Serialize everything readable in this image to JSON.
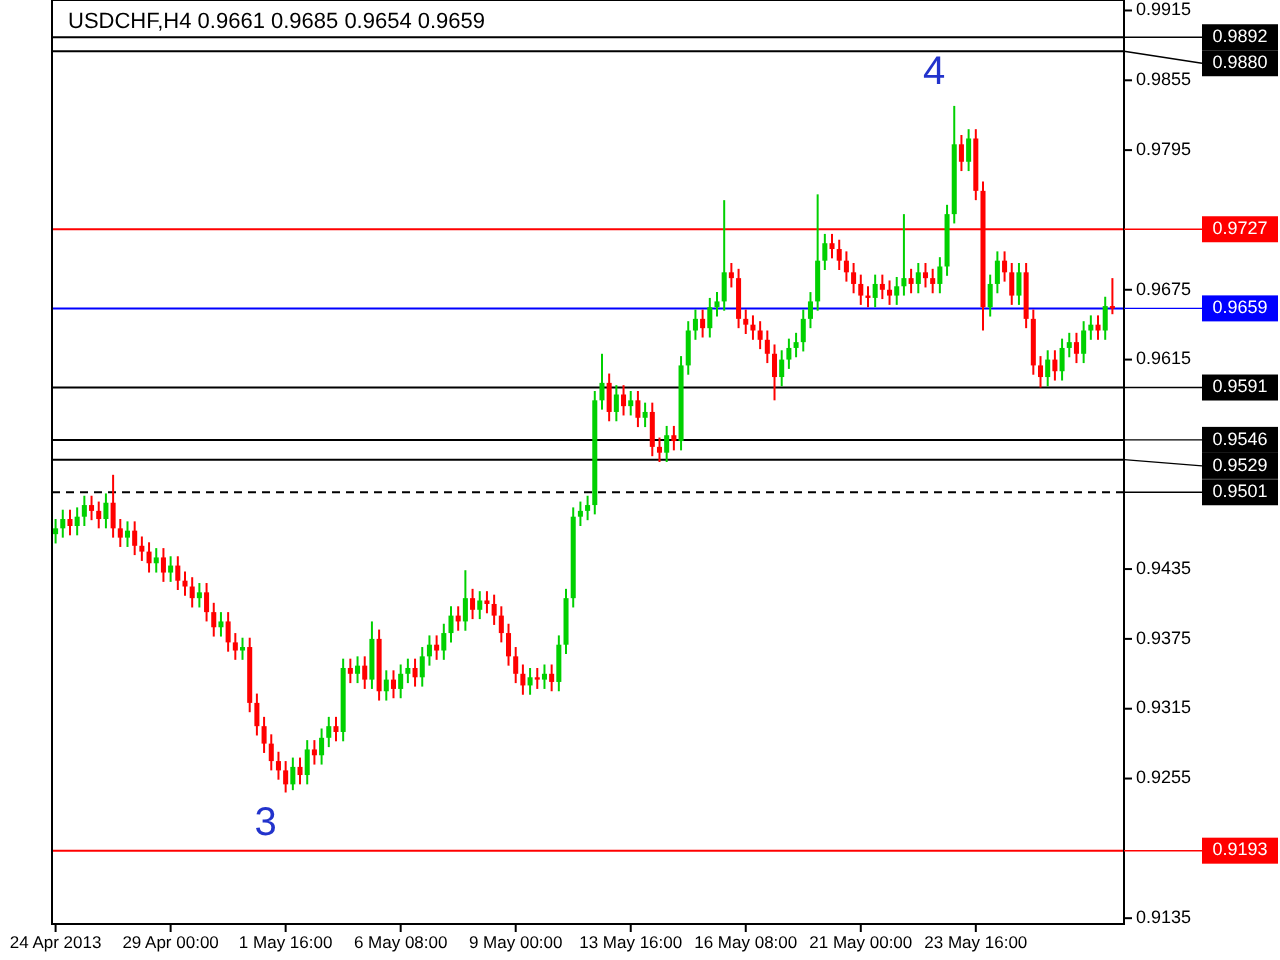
{
  "chart_data": {
    "type": "candlestick",
    "title": "USDCHF,H4  0.9661 0.9685 0.9654 0.9659",
    "categories": [
      "24 Apr 2013",
      null,
      null,
      null,
      null,
      null,
      null,
      null,
      null,
      null,
      null,
      null,
      null,
      null,
      null,
      null,
      "29 Apr 00:00",
      null,
      null,
      null,
      null,
      null,
      null,
      null,
      null,
      null,
      null,
      null,
      null,
      null,
      null,
      null,
      "1 May 16:00",
      null,
      null,
      null,
      null,
      null,
      null,
      null,
      null,
      null,
      null,
      null,
      null,
      null,
      null,
      null,
      "6 May 08:00",
      null,
      null,
      null,
      null,
      null,
      null,
      null,
      null,
      null,
      null,
      null,
      null,
      null,
      null,
      null,
      "9 May 00:00",
      null,
      null,
      null,
      null,
      null,
      null,
      null,
      null,
      null,
      null,
      null,
      null,
      null,
      null,
      null,
      "13 May 16:00",
      null,
      null,
      null,
      null,
      null,
      null,
      null,
      null,
      null,
      null,
      null,
      null,
      null,
      null,
      null,
      "16 May 08:00",
      null,
      null,
      null,
      null,
      null,
      null,
      null,
      null,
      null,
      null,
      null,
      null,
      null,
      null,
      null,
      "21 May 00:00",
      null,
      null,
      null,
      null,
      null,
      null,
      null,
      null,
      null,
      null,
      null,
      null,
      null,
      null,
      null,
      "23 May 16:00",
      null,
      null,
      null,
      null,
      null,
      null,
      null,
      null,
      null,
      null,
      null,
      null,
      null,
      null,
      null,
      null,
      null,
      null,
      null
    ],
    "ohlc": [
      [
        0.9465,
        0.9478,
        0.9457,
        0.947
      ],
      [
        0.947,
        0.9486,
        0.9462,
        0.9478
      ],
      [
        0.9478,
        0.9486,
        0.9464,
        0.9472
      ],
      [
        0.9472,
        0.9488,
        0.9464,
        0.948
      ],
      [
        0.948,
        0.9498,
        0.9472,
        0.949
      ],
      [
        0.949,
        0.9498,
        0.9477,
        0.9485
      ],
      [
        0.9485,
        0.9493,
        0.947,
        0.9478
      ],
      [
        0.9478,
        0.95,
        0.947,
        0.9492
      ],
      [
        0.9492,
        0.9516,
        0.9462,
        0.947
      ],
      [
        0.947,
        0.9478,
        0.9454,
        0.9462
      ],
      [
        0.9462,
        0.9476,
        0.9454,
        0.9468
      ],
      [
        0.9468,
        0.9476,
        0.9447,
        0.9455
      ],
      [
        0.9455,
        0.9463,
        0.9442,
        0.945
      ],
      [
        0.945,
        0.9458,
        0.9432,
        0.944
      ],
      [
        0.944,
        0.9453,
        0.9432,
        0.9445
      ],
      [
        0.9445,
        0.9453,
        0.9424,
        0.9432
      ],
      [
        0.9432,
        0.9446,
        0.9424,
        0.9438
      ],
      [
        0.9438,
        0.9446,
        0.9417,
        0.9425
      ],
      [
        0.9425,
        0.9433,
        0.9412,
        0.942
      ],
      [
        0.942,
        0.9428,
        0.9402,
        0.941
      ],
      [
        0.941,
        0.9423,
        0.9402,
        0.9415
      ],
      [
        0.9415,
        0.9423,
        0.939,
        0.9398
      ],
      [
        0.9398,
        0.9406,
        0.9377,
        0.9385
      ],
      [
        0.9385,
        0.9398,
        0.9377,
        0.939
      ],
      [
        0.939,
        0.9398,
        0.9364,
        0.9372
      ],
      [
        0.9372,
        0.938,
        0.9357,
        0.9365
      ],
      [
        0.9365,
        0.9376,
        0.9357,
        0.9368
      ],
      [
        0.9368,
        0.9376,
        0.9312,
        0.932
      ],
      [
        0.932,
        0.9328,
        0.9292,
        0.93
      ],
      [
        0.93,
        0.9308,
        0.9277,
        0.9285
      ],
      [
        0.9285,
        0.9293,
        0.9262,
        0.927
      ],
      [
        0.927,
        0.9278,
        0.9254,
        0.9262
      ],
      [
        0.9262,
        0.927,
        0.9243,
        0.925
      ],
      [
        0.925,
        0.9273,
        0.9245,
        0.9265
      ],
      [
        0.9265,
        0.9273,
        0.925,
        0.9258
      ],
      [
        0.9258,
        0.9288,
        0.925,
        0.928
      ],
      [
        0.928,
        0.9288,
        0.9267,
        0.9275
      ],
      [
        0.9275,
        0.9298,
        0.9267,
        0.929
      ],
      [
        0.929,
        0.9308,
        0.9282,
        0.93
      ],
      [
        0.93,
        0.9308,
        0.9287,
        0.9295
      ],
      [
        0.9295,
        0.9358,
        0.9287,
        0.935
      ],
      [
        0.935,
        0.9358,
        0.9337,
        0.9345
      ],
      [
        0.9345,
        0.936,
        0.9337,
        0.9352
      ],
      [
        0.9352,
        0.936,
        0.9332,
        0.934
      ],
      [
        0.934,
        0.939,
        0.9332,
        0.9375
      ],
      [
        0.9375,
        0.9383,
        0.9322,
        0.933
      ],
      [
        0.933,
        0.9348,
        0.9322,
        0.934
      ],
      [
        0.934,
        0.9348,
        0.9324,
        0.9332
      ],
      [
        0.9332,
        0.9353,
        0.9324,
        0.9345
      ],
      [
        0.9345,
        0.9358,
        0.9337,
        0.935
      ],
      [
        0.935,
        0.9358,
        0.9334,
        0.9342
      ],
      [
        0.9342,
        0.9368,
        0.9334,
        0.936
      ],
      [
        0.936,
        0.9378,
        0.9352,
        0.937
      ],
      [
        0.937,
        0.9378,
        0.9357,
        0.9365
      ],
      [
        0.9365,
        0.9388,
        0.9357,
        0.938
      ],
      [
        0.938,
        0.9403,
        0.9372,
        0.9395
      ],
      [
        0.9395,
        0.9403,
        0.9382,
        0.939
      ],
      [
        0.939,
        0.9434,
        0.9382,
        0.941
      ],
      [
        0.941,
        0.9418,
        0.9392,
        0.94
      ],
      [
        0.94,
        0.9416,
        0.9392,
        0.9408
      ],
      [
        0.9408,
        0.9416,
        0.9397,
        0.9405
      ],
      [
        0.9405,
        0.9413,
        0.9387,
        0.9395
      ],
      [
        0.9395,
        0.9403,
        0.9372,
        0.938
      ],
      [
        0.938,
        0.9388,
        0.9352,
        0.936
      ],
      [
        0.936,
        0.9368,
        0.9337,
        0.9345
      ],
      [
        0.9345,
        0.9353,
        0.9327,
        0.9335
      ],
      [
        0.9335,
        0.935,
        0.9327,
        0.9342
      ],
      [
        0.9342,
        0.935,
        0.9332,
        0.934
      ],
      [
        0.934,
        0.9353,
        0.9332,
        0.9345
      ],
      [
        0.9345,
        0.9353,
        0.933,
        0.9338
      ],
      [
        0.9338,
        0.9378,
        0.933,
        0.937
      ],
      [
        0.937,
        0.9418,
        0.9362,
        0.941
      ],
      [
        0.941,
        0.9488,
        0.9402,
        0.948
      ],
      [
        0.948,
        0.9493,
        0.9472,
        0.9485
      ],
      [
        0.9485,
        0.9498,
        0.9477,
        0.949
      ],
      [
        0.949,
        0.9588,
        0.9482,
        0.958
      ],
      [
        0.958,
        0.962,
        0.9572,
        0.9595
      ],
      [
        0.9595,
        0.9603,
        0.9562,
        0.957
      ],
      [
        0.957,
        0.9593,
        0.9562,
        0.9585
      ],
      [
        0.9585,
        0.9593,
        0.9567,
        0.9575
      ],
      [
        0.9575,
        0.9588,
        0.9567,
        0.958
      ],
      [
        0.958,
        0.9588,
        0.9557,
        0.9565
      ],
      [
        0.9565,
        0.9578,
        0.9557,
        0.957
      ],
      [
        0.957,
        0.9578,
        0.9532,
        0.954
      ],
      [
        0.954,
        0.9548,
        0.9527,
        0.9535
      ],
      [
        0.9535,
        0.9558,
        0.9527,
        0.955
      ],
      [
        0.955,
        0.9558,
        0.9537,
        0.9545
      ],
      [
        0.9545,
        0.9618,
        0.9537,
        0.961
      ],
      [
        0.961,
        0.9648,
        0.9602,
        0.964
      ],
      [
        0.964,
        0.9658,
        0.9632,
        0.965
      ],
      [
        0.965,
        0.9658,
        0.9634,
        0.9642
      ],
      [
        0.9642,
        0.9668,
        0.9634,
        0.966
      ],
      [
        0.966,
        0.9673,
        0.9652,
        0.9665
      ],
      [
        0.9665,
        0.9752,
        0.9657,
        0.969
      ],
      [
        0.969,
        0.9698,
        0.9677,
        0.9685
      ],
      [
        0.9685,
        0.9693,
        0.9642,
        0.965
      ],
      [
        0.965,
        0.9658,
        0.9637,
        0.9645
      ],
      [
        0.9645,
        0.9653,
        0.9632,
        0.964
      ],
      [
        0.964,
        0.9648,
        0.9624,
        0.9632
      ],
      [
        0.9632,
        0.964,
        0.9612,
        0.962
      ],
      [
        0.962,
        0.9628,
        0.958,
        0.96
      ],
      [
        0.96,
        0.9623,
        0.9592,
        0.9615
      ],
      [
        0.9615,
        0.9633,
        0.9607,
        0.9625
      ],
      [
        0.9625,
        0.9638,
        0.9617,
        0.963
      ],
      [
        0.963,
        0.9658,
        0.9622,
        0.965
      ],
      [
        0.965,
        0.9673,
        0.9642,
        0.9665
      ],
      [
        0.9665,
        0.9757,
        0.9657,
        0.97
      ],
      [
        0.97,
        0.9723,
        0.9692,
        0.9715
      ],
      [
        0.9715,
        0.9723,
        0.9702,
        0.971
      ],
      [
        0.971,
        0.9718,
        0.9692,
        0.97
      ],
      [
        0.97,
        0.9708,
        0.9682,
        0.969
      ],
      [
        0.969,
        0.9698,
        0.9672,
        0.968
      ],
      [
        0.968,
        0.9688,
        0.9662,
        0.967
      ],
      [
        0.967,
        0.9678,
        0.966,
        0.9668
      ],
      [
        0.9668,
        0.9688,
        0.966,
        0.968
      ],
      [
        0.968,
        0.9688,
        0.9667,
        0.9675
      ],
      [
        0.9675,
        0.9683,
        0.9662,
        0.967
      ],
      [
        0.967,
        0.9686,
        0.9662,
        0.9678
      ],
      [
        0.9678,
        0.974,
        0.967,
        0.9685
      ],
      [
        0.9685,
        0.9693,
        0.9672,
        0.968
      ],
      [
        0.968,
        0.9698,
        0.9672,
        0.969
      ],
      [
        0.969,
        0.9698,
        0.9677,
        0.9685
      ],
      [
        0.9685,
        0.9693,
        0.9672,
        0.968
      ],
      [
        0.968,
        0.9703,
        0.9672,
        0.9695
      ],
      [
        0.9695,
        0.9748,
        0.9687,
        0.974
      ],
      [
        0.974,
        0.9833,
        0.9732,
        0.98
      ],
      [
        0.98,
        0.9808,
        0.9777,
        0.9785
      ],
      [
        0.9785,
        0.9813,
        0.9777,
        0.9805
      ],
      [
        0.9805,
        0.9813,
        0.9752,
        0.976
      ],
      [
        0.976,
        0.9768,
        0.964,
        0.966
      ],
      [
        0.966,
        0.9688,
        0.9652,
        0.968
      ],
      [
        0.968,
        0.9708,
        0.9672,
        0.97
      ],
      [
        0.97,
        0.9708,
        0.9682,
        0.969
      ],
      [
        0.969,
        0.9698,
        0.9662,
        0.967
      ],
      [
        0.967,
        0.9698,
        0.9662,
        0.969
      ],
      [
        0.969,
        0.9698,
        0.9642,
        0.965
      ],
      [
        0.965,
        0.9658,
        0.9602,
        0.961
      ],
      [
        0.961,
        0.9618,
        0.9591,
        0.96
      ],
      [
        0.96,
        0.9623,
        0.9592,
        0.9615
      ],
      [
        0.9615,
        0.9623,
        0.9597,
        0.9605
      ],
      [
        0.9605,
        0.9633,
        0.9597,
        0.9625
      ],
      [
        0.9625,
        0.9638,
        0.9617,
        0.963
      ],
      [
        0.963,
        0.9638,
        0.9612,
        0.962
      ],
      [
        0.962,
        0.9648,
        0.9612,
        0.964
      ],
      [
        0.964,
        0.9653,
        0.9632,
        0.9645
      ],
      [
        0.9645,
        0.9653,
        0.9632,
        0.964
      ],
      [
        0.964,
        0.9669,
        0.9632,
        0.9661
      ],
      [
        0.9661,
        0.9685,
        0.9654,
        0.9659
      ]
    ],
    "ylim": [
      0.913,
      0.9924
    ],
    "yticks": [
      0.9915,
      0.9855,
      0.9795,
      0.9675,
      0.9615,
      0.9435,
      0.9375,
      0.9315,
      0.9255,
      0.9135
    ],
    "ref_lines": [
      {
        "axis": "y",
        "value": 0.9892,
        "label": "0.9892",
        "color": "#000000"
      },
      {
        "axis": "y",
        "value": 0.988,
        "label": "0.9880",
        "color": "#000000"
      },
      {
        "axis": "y",
        "value": 0.9727,
        "label": "0.9727",
        "color": "#ff0000"
      },
      {
        "axis": "y",
        "value": 0.9659,
        "label": "0.9659",
        "color": "#0000ff"
      },
      {
        "axis": "y",
        "value": 0.9591,
        "label": "0.9591",
        "color": "#000000"
      },
      {
        "axis": "y",
        "value": 0.9546,
        "label": "0.9546",
        "color": "#000000"
      },
      {
        "axis": "y",
        "value": 0.9529,
        "label": "0.9529",
        "color": "#000000"
      },
      {
        "axis": "y",
        "value": 0.9501,
        "label": "0.9501",
        "color": "#000000",
        "line_style": "dashed"
      },
      {
        "axis": "y",
        "value": 0.9193,
        "label": "0.9193",
        "color": "#ff0000"
      }
    ],
    "annotations": [
      "3",
      "4"
    ],
    "grid": false
  }
}
